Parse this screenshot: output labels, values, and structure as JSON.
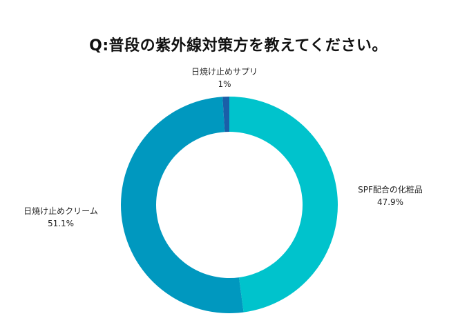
{
  "chart_data": {
    "type": "pie",
    "title": "Q:普段の紫外線対策方を教えてください。",
    "slices": [
      {
        "label": "SPF配合の化粧品",
        "value": 47.9,
        "value_label": "47.9%",
        "color": "#00c3cc"
      },
      {
        "label": "日焼け止めクリーム",
        "value": 51.1,
        "value_label": "51.1%",
        "color": "#0098bf"
      },
      {
        "label": "日焼け止めサプリ",
        "value": 1.0,
        "value_label": "1%",
        "color": "#1a5fa8"
      }
    ]
  }
}
